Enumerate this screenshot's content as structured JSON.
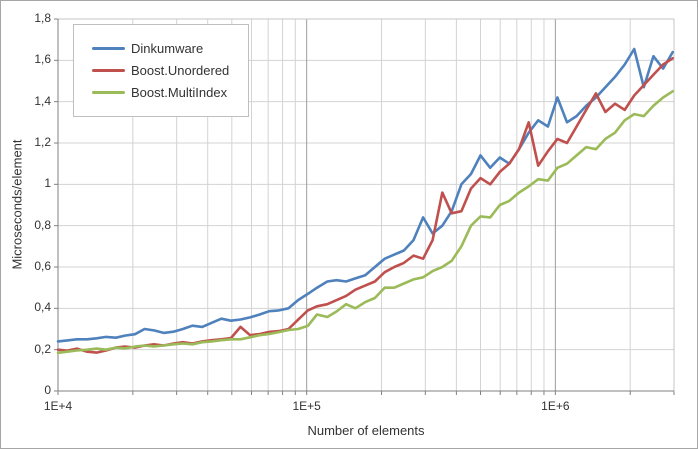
{
  "chart_data": {
    "type": "line",
    "title": "",
    "xlabel": "Number of elements",
    "ylabel": "Microseconds/element",
    "x_scale": "log",
    "x_range": [
      10000,
      3000000
    ],
    "y_range": [
      0,
      1.8
    ],
    "grid": true,
    "legend_position": "top-left",
    "x_ticks": [
      {
        "v": 10000,
        "label": "1E+4"
      },
      {
        "v": 100000,
        "label": "1E+5"
      },
      {
        "v": 1000000,
        "label": "1E+6"
      }
    ],
    "y_ticks": [
      {
        "v": 0.0,
        "label": "0"
      },
      {
        "v": 0.2,
        "label": "0,2"
      },
      {
        "v": 0.4,
        "label": "0,4"
      },
      {
        "v": 0.6,
        "label": "0,6"
      },
      {
        "v": 0.8,
        "label": "0,8"
      },
      {
        "v": 1.0,
        "label": "1"
      },
      {
        "v": 1.2,
        "label": "1,2"
      },
      {
        "v": 1.4,
        "label": "1,4"
      },
      {
        "v": 1.6,
        "label": "1,6"
      },
      {
        "v": 1.8,
        "label": "1,8"
      }
    ],
    "x": [
      10000,
      10900,
      11900,
      13100,
      14300,
      15600,
      17100,
      18600,
      20400,
      22300,
      24300,
      26600,
      29100,
      31800,
      34700,
      38000,
      41500,
      45400,
      49600,
      54200,
      59200,
      64700,
      70700,
      77300,
      84500,
      92400,
      101000,
      110000,
      121000,
      132000,
      144000,
      157000,
      172000,
      188000,
      206000,
      225000,
      246000,
      269000,
      294000,
      321000,
      351000,
      383000,
      419000,
      458000,
      500000,
      547000,
      598000,
      653000,
      714000,
      781000,
      853000,
      933000,
      1019000,
      1114000,
      1218000,
      1331000,
      1455000,
      1590000,
      1738000,
      1900000,
      2076000,
      2269000,
      2480000,
      2711000,
      2963000
    ],
    "series": [
      {
        "name": "Dinkumware",
        "color": "#4f81bd",
        "values": [
          0.24,
          0.245,
          0.25,
          0.25,
          0.255,
          0.262,
          0.258,
          0.268,
          0.275,
          0.3,
          0.293,
          0.281,
          0.287,
          0.3,
          0.316,
          0.31,
          0.33,
          0.35,
          0.34,
          0.346,
          0.356,
          0.37,
          0.386,
          0.39,
          0.4,
          0.44,
          0.47,
          0.5,
          0.53,
          0.536,
          0.53,
          0.545,
          0.56,
          0.6,
          0.64,
          0.66,
          0.68,
          0.73,
          0.84,
          0.762,
          0.8,
          0.87,
          1.0,
          1.05,
          1.14,
          1.08,
          1.13,
          1.1,
          1.17,
          1.25,
          1.31,
          1.28,
          1.42,
          1.3,
          1.33,
          1.38,
          1.42,
          1.47,
          1.52,
          1.58,
          1.655,
          1.47,
          1.62,
          1.56,
          1.64
        ]
      },
      {
        "name": "Boost.Unordered",
        "color": "#c0504d",
        "values": [
          0.2,
          0.195,
          0.205,
          0.19,
          0.186,
          0.196,
          0.21,
          0.215,
          0.21,
          0.22,
          0.226,
          0.22,
          0.23,
          0.236,
          0.23,
          0.24,
          0.246,
          0.25,
          0.256,
          0.31,
          0.27,
          0.276,
          0.286,
          0.29,
          0.3,
          0.345,
          0.39,
          0.41,
          0.42,
          0.44,
          0.46,
          0.49,
          0.51,
          0.53,
          0.575,
          0.6,
          0.62,
          0.655,
          0.64,
          0.73,
          0.96,
          0.86,
          0.87,
          0.98,
          1.03,
          1.0,
          1.06,
          1.1,
          1.17,
          1.3,
          1.09,
          1.16,
          1.22,
          1.2,
          1.28,
          1.36,
          1.44,
          1.35,
          1.39,
          1.36,
          1.43,
          1.48,
          1.53,
          1.58,
          1.61
        ]
      },
      {
        "name": "Boost.MultiIndex",
        "color": "#9bbb59",
        "values": [
          0.185,
          0.19,
          0.196,
          0.2,
          0.205,
          0.2,
          0.21,
          0.206,
          0.215,
          0.22,
          0.216,
          0.22,
          0.226,
          0.23,
          0.226,
          0.236,
          0.24,
          0.246,
          0.25,
          0.25,
          0.26,
          0.27,
          0.276,
          0.285,
          0.295,
          0.3,
          0.315,
          0.37,
          0.358,
          0.385,
          0.42,
          0.4,
          0.43,
          0.45,
          0.5,
          0.5,
          0.52,
          0.54,
          0.55,
          0.58,
          0.6,
          0.63,
          0.7,
          0.8,
          0.845,
          0.84,
          0.9,
          0.92,
          0.96,
          0.99,
          1.025,
          1.018,
          1.08,
          1.1,
          1.14,
          1.18,
          1.17,
          1.22,
          1.25,
          1.31,
          1.34,
          1.33,
          1.38,
          1.42,
          1.45
        ]
      }
    ],
    "colors": {
      "grid_minor": "#d3d3d3",
      "grid_decade": "#9c9c9c",
      "axis": "#808080",
      "plot_border": "#c6c6c6",
      "text": "#333333"
    }
  }
}
